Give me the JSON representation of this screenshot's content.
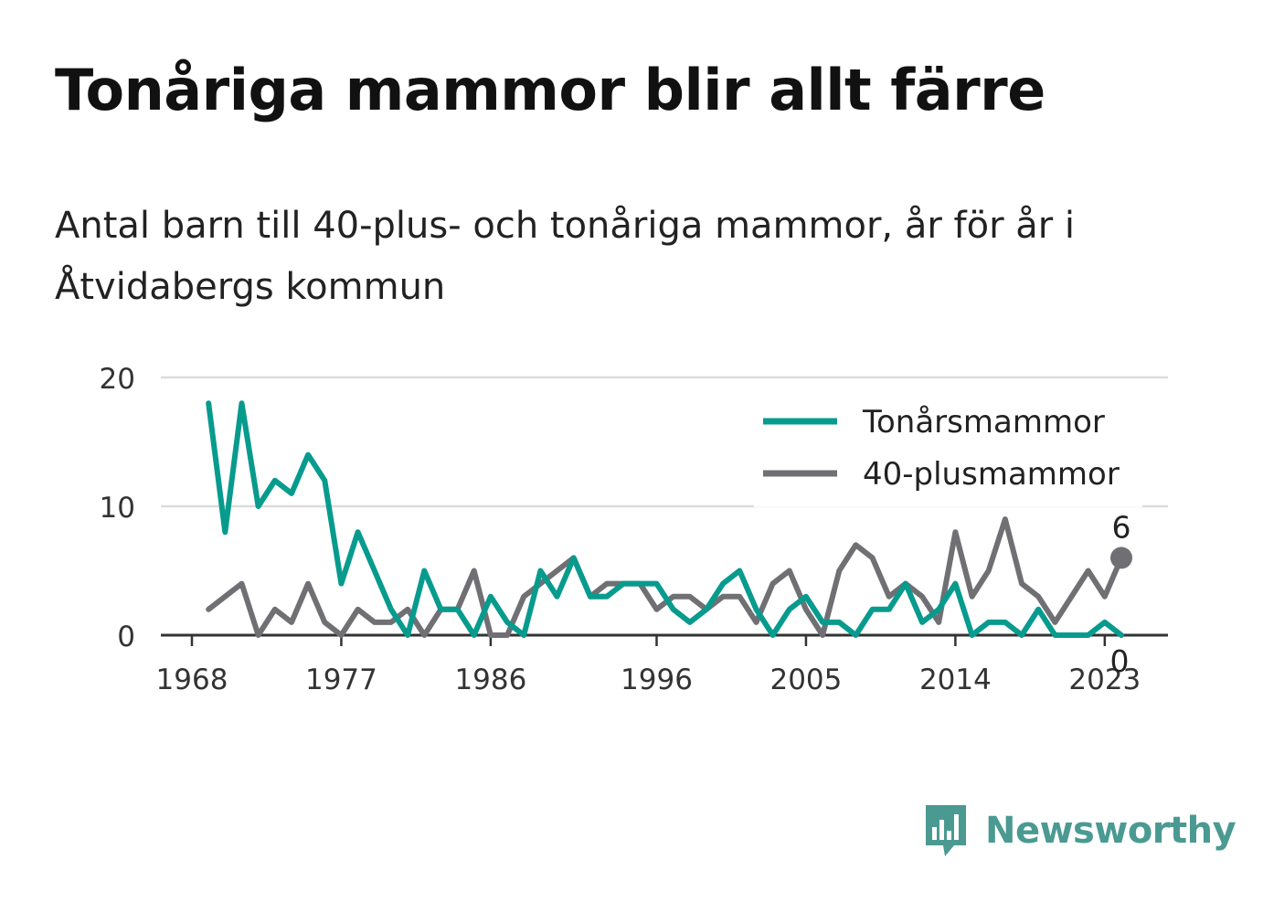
{
  "title": "Tonåriga mammor blir allt färre",
  "subtitle": "Antal barn till 40-plus- och tonåriga mammor, år för år i Åtvidabergs kommun",
  "brand": {
    "name": "Newsworthy",
    "icon": "newsworthy-logo-icon",
    "color": "#4a9a92"
  },
  "chart_data": {
    "type": "line",
    "title": "Tonåriga mammor blir allt färre",
    "subtitle": "Antal barn till 40-plus- och tonåriga mammor, år för år i Åtvidabergs kommun",
    "x_ticks": [
      1968,
      1977,
      1986,
      1996,
      2005,
      2014,
      2023
    ],
    "y_ticks": [
      0,
      10,
      20
    ],
    "xlim": [
      1968,
      2024
    ],
    "ylim": [
      0,
      20
    ],
    "grid": true,
    "legend_position": "top-right",
    "x": [
      1969,
      1970,
      1971,
      1972,
      1973,
      1974,
      1975,
      1976,
      1977,
      1978,
      1979,
      1980,
      1981,
      1982,
      1983,
      1984,
      1985,
      1986,
      1987,
      1988,
      1989,
      1990,
      1991,
      1992,
      1993,
      1994,
      1995,
      1996,
      1997,
      1998,
      1999,
      2000,
      2001,
      2002,
      2003,
      2004,
      2005,
      2006,
      2007,
      2008,
      2009,
      2010,
      2011,
      2012,
      2013,
      2014,
      2015,
      2016,
      2017,
      2018,
      2019,
      2020,
      2021,
      2022,
      2023,
      2024
    ],
    "series": [
      {
        "name": "Tonårsmammor",
        "color": "#079b8e",
        "values": [
          18,
          8,
          18,
          10,
          12,
          11,
          14,
          12,
          4,
          8,
          5,
          2,
          0,
          5,
          2,
          2,
          0,
          3,
          1,
          0,
          5,
          3,
          6,
          3,
          3,
          4,
          4,
          4,
          2,
          1,
          2,
          4,
          5,
          2,
          0,
          2,
          3,
          1,
          1,
          0,
          2,
          2,
          4,
          1,
          2,
          4,
          0,
          1,
          1,
          0,
          2,
          0,
          0,
          0,
          1,
          0
        ],
        "end_label": "0"
      },
      {
        "name": "40-plusmammor",
        "color": "#707074",
        "values": [
          2,
          3,
          4,
          0,
          2,
          1,
          4,
          1,
          0,
          2,
          1,
          1,
          2,
          0,
          2,
          2,
          5,
          0,
          0,
          3,
          4,
          5,
          6,
          3,
          4,
          4,
          4,
          2,
          3,
          3,
          2,
          3,
          3,
          1,
          4,
          5,
          2,
          0,
          5,
          7,
          6,
          3,
          4,
          3,
          1,
          8,
          3,
          5,
          9,
          4,
          3,
          1,
          3,
          5,
          3,
          6
        ],
        "end_label": "6"
      }
    ]
  }
}
